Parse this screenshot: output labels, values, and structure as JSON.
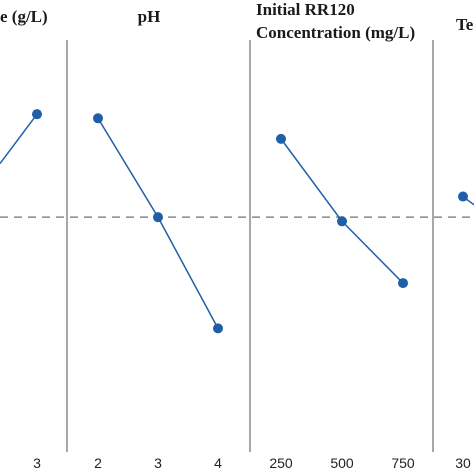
{
  "chart_data": {
    "type": "line",
    "reference_line": "dashed horizontal (mean)",
    "panels": [
      {
        "title": [
          "e (g/L)"
        ],
        "categories": [
          "3"
        ],
        "values": [
          8.2
        ],
        "incoming_from": 7.0
      },
      {
        "title": [
          "pH"
        ],
        "categories": [
          "2",
          "3",
          "4"
        ],
        "values": [
          8.1,
          5.7,
          3.0
        ]
      },
      {
        "title": [
          "Initial RR120",
          "Concentration (mg/L)"
        ],
        "categories": [
          "250",
          "500",
          "750"
        ],
        "values": [
          7.6,
          5.6,
          4.1
        ]
      },
      {
        "title": [
          "Te"
        ],
        "categories": [
          "30"
        ],
        "values": [
          6.2
        ],
        "outgoing_to": 6.0
      }
    ],
    "ref_value": 5.7,
    "ylim": [
      0,
      10
    ]
  }
}
